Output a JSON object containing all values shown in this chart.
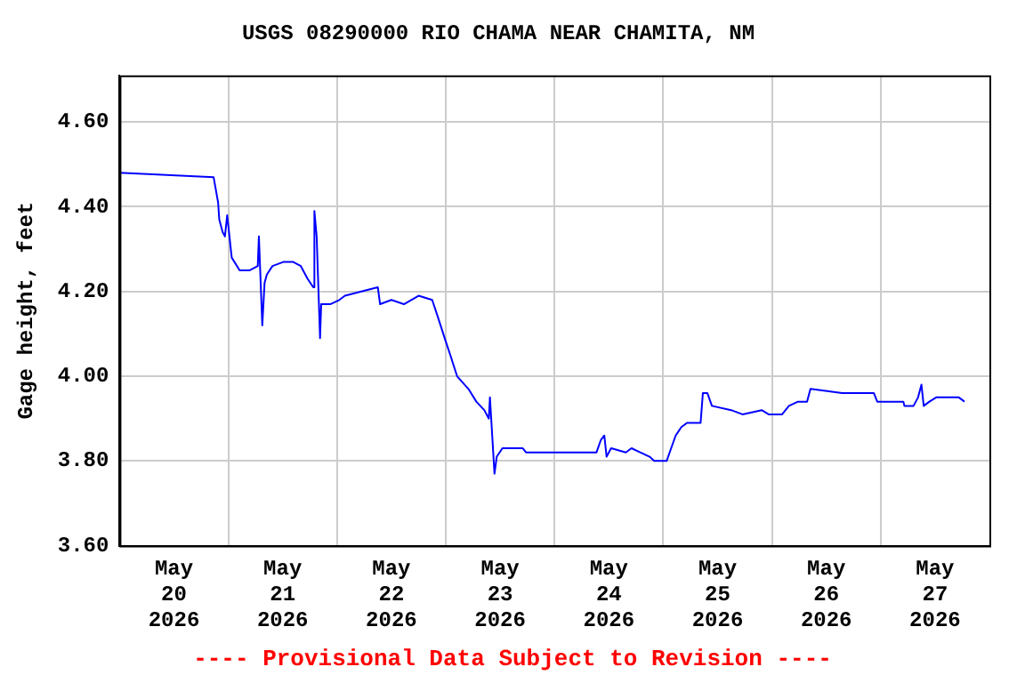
{
  "chart_data": {
    "type": "line",
    "title": "USGS 08290000 RIO CHAMA NEAR CHAMITA, NM",
    "ylabel": "Gage height, feet",
    "annotations": [
      "---- Provisional Data Subject to Revision ----"
    ],
    "grid": true,
    "xlim": [
      "2026-05-20T00:00",
      "2026-05-28T00:00"
    ],
    "xticks": [
      {
        "value": "2026-05-20T12:00",
        "label": "May 20 2026"
      },
      {
        "value": "2026-05-21T00:00",
        "label": null
      },
      {
        "value": "2026-05-21T12:00",
        "label": "May 21 2026"
      },
      {
        "value": "2026-05-22T00:00",
        "label": null
      },
      {
        "value": "2026-05-22T12:00",
        "label": "May 22 2026"
      },
      {
        "value": "2026-05-23T00:00",
        "label": null
      },
      {
        "value": "2026-05-23T12:00",
        "label": "May 23 2026"
      },
      {
        "value": "2026-05-24T00:00",
        "label": null
      },
      {
        "value": "2026-05-24T12:00",
        "label": "May 24 2026"
      },
      {
        "value": "2026-05-25T00:00",
        "label": null
      },
      {
        "value": "2026-05-25T12:00",
        "label": "May 25 2026"
      },
      {
        "value": "2026-05-26T00:00",
        "label": null
      },
      {
        "value": "2026-05-26T12:00",
        "label": "May 26 2026"
      },
      {
        "value": "2026-05-27T00:00",
        "label": null
      },
      {
        "value": "2026-05-27T12:00",
        "label": "May 27 2026"
      }
    ],
    "ylim": [
      3.6,
      4.71
    ],
    "yticks": [
      {
        "value": 3.6,
        "label": "3.60"
      },
      {
        "value": 3.8,
        "label": "3.80"
      },
      {
        "value": 4.0,
        "label": "4.00"
      },
      {
        "value": 4.2,
        "label": "4.20"
      },
      {
        "value": 4.4,
        "label": "4.40"
      },
      {
        "value": 4.6,
        "label": "4.60"
      }
    ],
    "series": [
      {
        "color": "#0000ff",
        "x": [
          "2026-05-20T00:00",
          "2026-05-20T20:45",
          "2026-05-20T21:45",
          "2026-05-20T22:00",
          "2026-05-20T22:45",
          "2026-05-20T23:15",
          "2026-05-20T23:45",
          "2026-05-21T00:45",
          "2026-05-21T02:30",
          "2026-05-21T04:45",
          "2026-05-21T06:30",
          "2026-05-21T06:45",
          "2026-05-21T07:30",
          "2026-05-21T08:00",
          "2026-05-21T08:30",
          "2026-05-21T09:45",
          "2026-05-21T12:15",
          "2026-05-21T14:15",
          "2026-05-21T16:00",
          "2026-05-21T17:30",
          "2026-05-21T18:45",
          "2026-05-21T19:00",
          "2026-05-21T19:30",
          "2026-05-21T20:15",
          "2026-05-21T20:30",
          "2026-05-21T22:30",
          "2026-05-22T00:30",
          "2026-05-22T01:45",
          "2026-05-22T09:00",
          "2026-05-22T09:30",
          "2026-05-22T12:00",
          "2026-05-22T14:45",
          "2026-05-22T18:00",
          "2026-05-22T21:00",
          "2026-05-22T22:15",
          "2026-05-22T23:45",
          "2026-05-23T01:00",
          "2026-05-23T02:30",
          "2026-05-23T05:00",
          "2026-05-23T06:45",
          "2026-05-23T08:30",
          "2026-05-23T09:30",
          "2026-05-23T09:45",
          "2026-05-23T10:15",
          "2026-05-23T10:45",
          "2026-05-23T11:15",
          "2026-05-23T12:30",
          "2026-05-23T17:00",
          "2026-05-23T17:45",
          "2026-05-24T02:45",
          "2026-05-24T09:15",
          "2026-05-24T10:15",
          "2026-05-24T11:00",
          "2026-05-24T11:30",
          "2026-05-24T12:30",
          "2026-05-24T15:45",
          "2026-05-24T17:00",
          "2026-05-24T19:00",
          "2026-05-24T21:00",
          "2026-05-24T22:00",
          "2026-05-25T00:45",
          "2026-05-25T01:45",
          "2026-05-25T02:45",
          "2026-05-25T04:00",
          "2026-05-25T05:15",
          "2026-05-25T08:15",
          "2026-05-25T08:45",
          "2026-05-25T09:45",
          "2026-05-25T10:45",
          "2026-05-25T15:00",
          "2026-05-25T17:30",
          "2026-05-25T21:45",
          "2026-05-25T23:15",
          "2026-05-26T02:15",
          "2026-05-26T03:45",
          "2026-05-26T05:45",
          "2026-05-26T07:45",
          "2026-05-26T08:30",
          "2026-05-26T15:30",
          "2026-05-26T18:00",
          "2026-05-26T22:30",
          "2026-05-26T23:15",
          "2026-05-27T05:00",
          "2026-05-27T05:15",
          "2026-05-27T07:15",
          "2026-05-27T08:15",
          "2026-05-27T09:00",
          "2026-05-27T09:30",
          "2026-05-27T10:45",
          "2026-05-27T12:15",
          "2026-05-27T17:15",
          "2026-05-27T18:30"
        ],
        "values": [
          4.48,
          4.47,
          4.41,
          4.37,
          4.34,
          4.33,
          4.38,
          4.28,
          4.25,
          4.25,
          4.26,
          4.33,
          4.12,
          4.22,
          4.24,
          4.26,
          4.27,
          4.27,
          4.26,
          4.23,
          4.21,
          4.39,
          4.33,
          4.09,
          4.17,
          4.17,
          4.18,
          4.19,
          4.21,
          4.17,
          4.18,
          4.17,
          4.19,
          4.18,
          4.14,
          4.09,
          4.05,
          4.0,
          3.97,
          3.94,
          3.92,
          3.9,
          3.95,
          3.86,
          3.77,
          3.81,
          3.83,
          3.83,
          3.82,
          3.82,
          3.82,
          3.85,
          3.86,
          3.81,
          3.83,
          3.82,
          3.83,
          3.82,
          3.81,
          3.8,
          3.8,
          3.83,
          3.86,
          3.88,
          3.89,
          3.89,
          3.96,
          3.96,
          3.93,
          3.92,
          3.91,
          3.92,
          3.91,
          3.91,
          3.93,
          3.94,
          3.94,
          3.97,
          3.96,
          3.96,
          3.96,
          3.94,
          3.94,
          3.93,
          3.93,
          3.95,
          3.98,
          3.93,
          3.94,
          3.95,
          3.95,
          3.94
        ]
      }
    ]
  }
}
